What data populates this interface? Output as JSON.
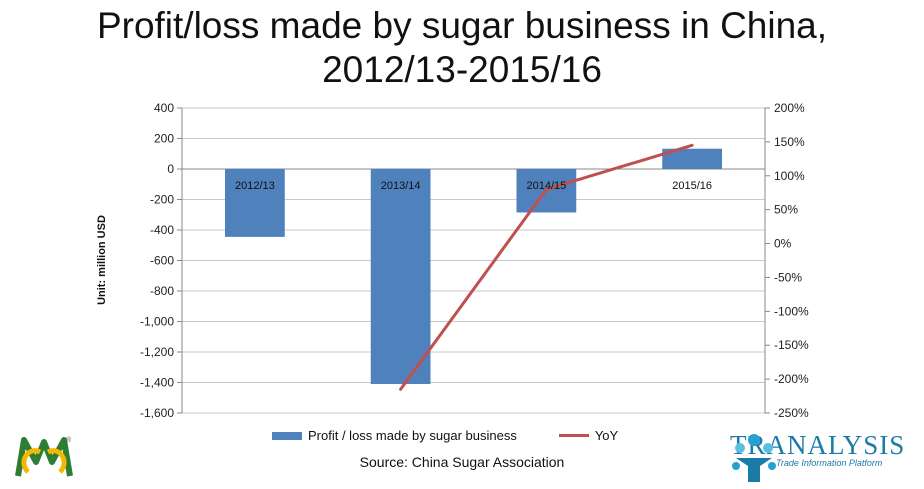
{
  "title_line1": "Profit/loss made by sugar business in China,",
  "title_line2": "2012/13-2015/16",
  "source": "Source: China Sugar Association",
  "logos": {
    "left_icon": "cmc-logo-icon",
    "right_name": "TRANALYSIS",
    "right_sub": "Trade Information Platform"
  },
  "colors": {
    "bar": "#4f81bd",
    "line": "#c0504d"
  },
  "chart_data": {
    "type": "bar",
    "categories": [
      "2012/13",
      "2013/14",
      "2014/15",
      "2015/16"
    ],
    "series": [
      {
        "name": "Profit / loss made by sugar business",
        "type": "bar",
        "axis": "left",
        "values": [
          -445,
          -1410,
          -285,
          133
        ]
      },
      {
        "name": "YoY",
        "type": "line",
        "axis": "right",
        "values": [
          null,
          -215,
          80,
          145
        ]
      }
    ],
    "ylabel": "Unit: million USD",
    "ylim": [
      -1600,
      400
    ],
    "yticks": [
      "400",
      "200",
      "0",
      "-200",
      "-400",
      "-600",
      "-800",
      "-1,000",
      "-1,200",
      "-1,400",
      "-1,600"
    ],
    "y2lim": [
      -250,
      200
    ],
    "y2ticks": [
      "200%",
      "150%",
      "100%",
      "50%",
      "0%",
      "-50%",
      "-100%",
      "-150%",
      "-200%",
      "-250%"
    ],
    "grid": true,
    "legend_position": "bottom"
  }
}
